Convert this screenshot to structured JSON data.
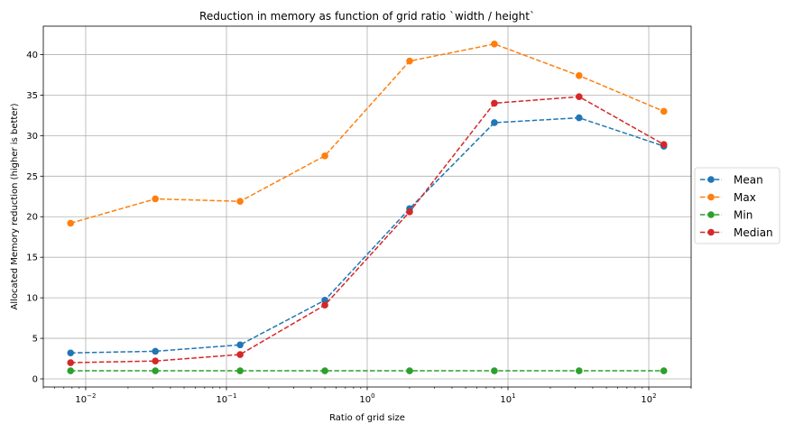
{
  "chart_data": {
    "type": "line",
    "title": "Reduction in memory as function of grid ratio `width / height`",
    "xlabel": "Ratio of grid size",
    "ylabel": "Allocated Memory reduction (higher is better)",
    "xscale": "log",
    "xlim": [
      0.005,
      200
    ],
    "ylim": [
      -1,
      43.5
    ],
    "grid": true,
    "legend_position": "outside-right",
    "x": [
      0.0078125,
      0.03125,
      0.125,
      0.5,
      2,
      8,
      32,
      128
    ],
    "x_ticks": [
      {
        "value": 0.01,
        "base": "10",
        "exp": "−2"
      },
      {
        "value": 0.1,
        "base": "10",
        "exp": "−1"
      },
      {
        "value": 1,
        "base": "10",
        "exp": "0"
      },
      {
        "value": 10,
        "base": "10",
        "exp": "1"
      },
      {
        "value": 100,
        "base": "10",
        "exp": "2"
      }
    ],
    "y_ticks": [
      0,
      5,
      10,
      15,
      20,
      25,
      30,
      35,
      40
    ],
    "series": [
      {
        "name": "Mean",
        "color": "#1f77b4",
        "values": [
          3.2,
          3.4,
          4.2,
          9.7,
          21.0,
          31.6,
          32.2,
          28.7
        ]
      },
      {
        "name": "Max",
        "color": "#ff7f0e",
        "values": [
          19.2,
          22.2,
          21.9,
          27.5,
          39.2,
          41.3,
          37.4,
          33.0
        ]
      },
      {
        "name": "Min",
        "color": "#2ca02c",
        "values": [
          1.0,
          1.0,
          1.0,
          1.0,
          1.0,
          1.0,
          1.0,
          1.0
        ]
      },
      {
        "name": "Median",
        "color": "#d62728",
        "values": [
          2.0,
          2.2,
          3.0,
          9.1,
          20.6,
          34.0,
          34.8,
          28.9
        ]
      }
    ]
  }
}
